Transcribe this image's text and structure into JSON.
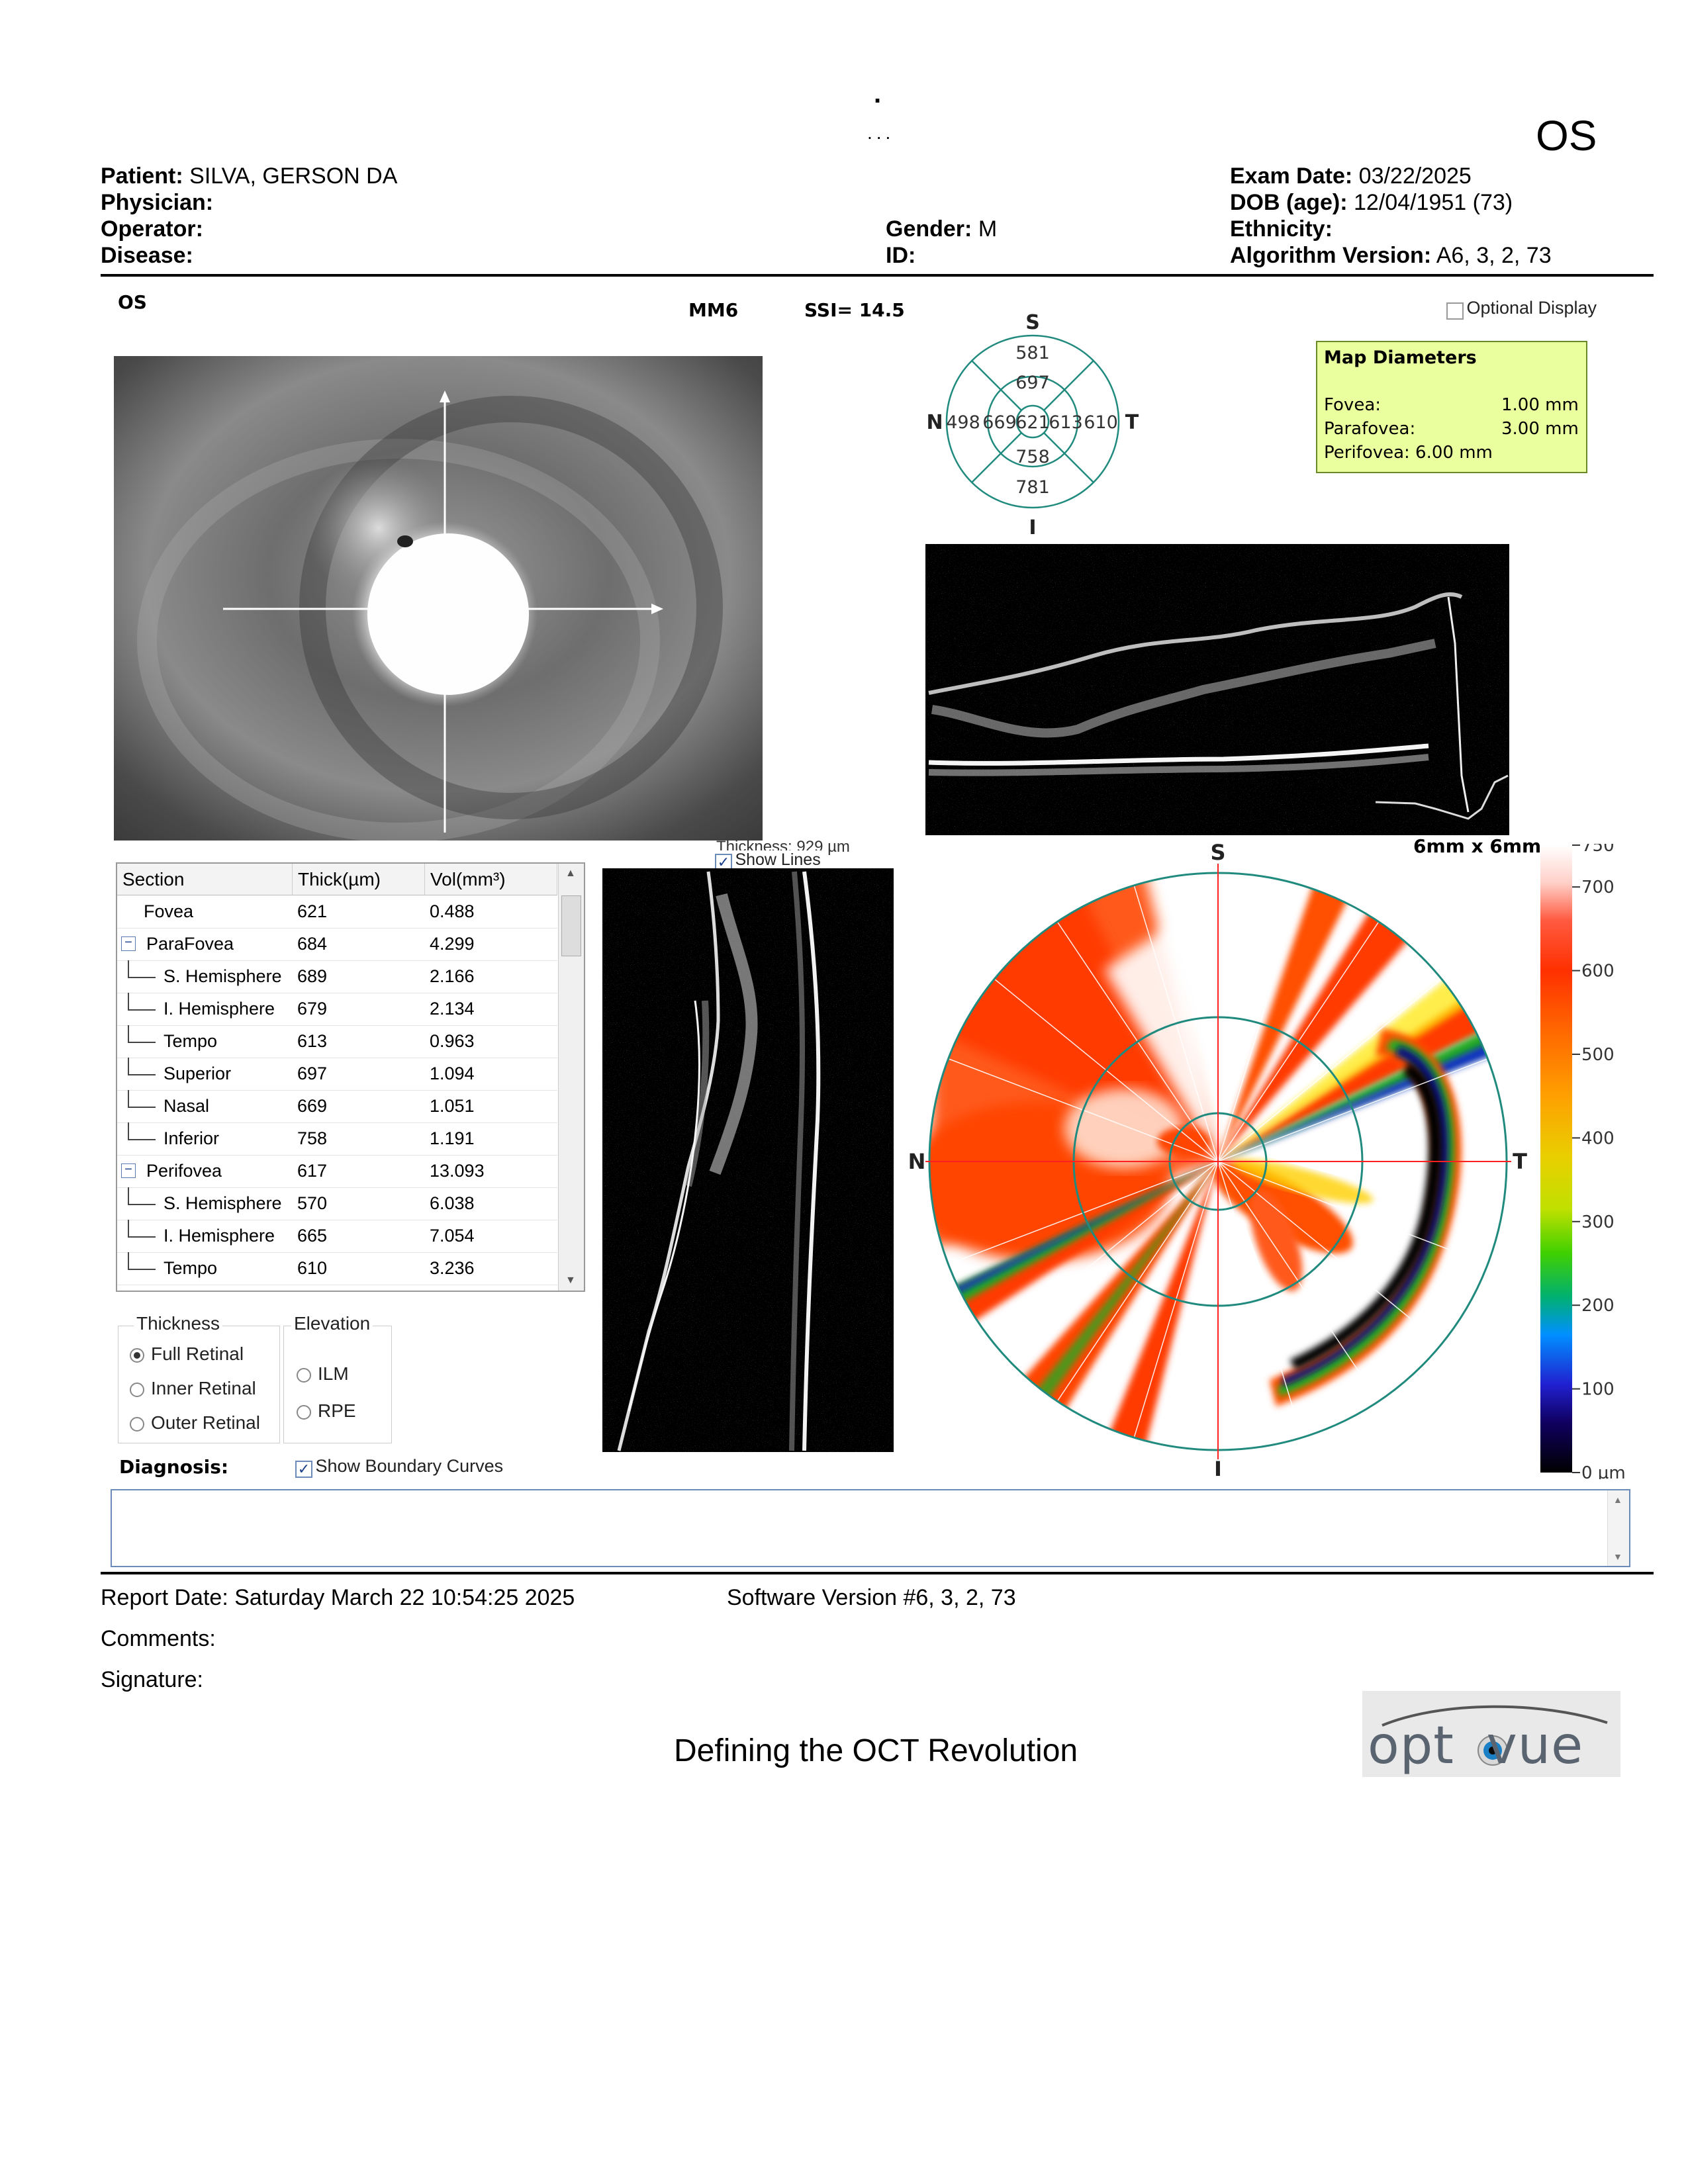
{
  "header": {
    "dot_mark": ".",
    "dots_mark": "...",
    "eye": "OS",
    "patient_label": "Patient:",
    "patient_value": "SILVA, GERSON DA",
    "physician_label": "Physician:",
    "operator_label": "Operator:",
    "disease_label": "Disease:",
    "gender_label": "Gender:",
    "gender_value": "M",
    "id_label": "ID:",
    "exam_date_label": "Exam Date:",
    "exam_date_value": "03/22/2025",
    "dob_label": "DOB (age):",
    "dob_value": "12/04/1951 (73)",
    "ethnicity_label": "Ethnicity:",
    "algorithm_label": "Algorithm Version:",
    "algorithm_value": "A6, 3, 2, 73"
  },
  "scan": {
    "eye_label": "OS",
    "mode": "MM6",
    "ssi": "SSI= 14.5",
    "optional_display": "Optional Display"
  },
  "sector_map": {
    "S": "S",
    "I": "I",
    "N": "N",
    "T": "T",
    "outer_superior": "581",
    "inner_superior": "697",
    "outer_nasal": "498",
    "inner_nasal": "669",
    "center": "621",
    "inner_temporal": "613",
    "outer_temporal": "610",
    "inner_inferior": "758",
    "outer_inferior": "781"
  },
  "map_diameters": {
    "title": "Map Diameters",
    "fovea_label": "Fovea:",
    "fovea_value": "1.00 mm",
    "parafovea_label": "Parafovea:",
    "parafovea_value": "3.00 mm",
    "perifovea": "Perifovea: 6.00 mm"
  },
  "table": {
    "col_section": "Section",
    "col_thick": "Thick(µm)",
    "col_vol": "Vol(mm³)",
    "rows": [
      {
        "name": "Fovea",
        "thick": "621",
        "vol": "0.488",
        "level": 0
      },
      {
        "name": "ParaFovea",
        "thick": "684",
        "vol": "4.299",
        "level": 1
      },
      {
        "name": "S. Hemisphere",
        "thick": "689",
        "vol": "2.166",
        "level": 2
      },
      {
        "name": "I. Hemisphere",
        "thick": "679",
        "vol": "2.134",
        "level": 2
      },
      {
        "name": "Tempo",
        "thick": "613",
        "vol": "0.963",
        "level": 2
      },
      {
        "name": "Superior",
        "thick": "697",
        "vol": "1.094",
        "level": 2
      },
      {
        "name": "Nasal",
        "thick": "669",
        "vol": "1.051",
        "level": 2
      },
      {
        "name": "Inferior",
        "thick": "758",
        "vol": "1.191",
        "level": 2
      },
      {
        "name": "Perifovea",
        "thick": "617",
        "vol": "13.093",
        "level": 1
      },
      {
        "name": "S. Hemisphere",
        "thick": "570",
        "vol": "6.038",
        "level": 2
      },
      {
        "name": "I. Hemisphere",
        "thick": "665",
        "vol": "7.054",
        "level": 2
      },
      {
        "name": "Tempo",
        "thick": "610",
        "vol": "3.236",
        "level": 2
      }
    ]
  },
  "controls": {
    "thickness_title": "Thickness",
    "full_retinal": "Full Retinal",
    "inner_retinal": "Inner Retinal",
    "outer_retinal": "Outer Retinal",
    "elevation_title": "Elevation",
    "ilm": "ILM",
    "rpe": "RPE",
    "show_lines": "Show Lines",
    "thickness_readout": "Thickness: 929 µm",
    "show_boundary_curves": "Show Boundary Curves",
    "diagnosis_label": "Diagnosis:"
  },
  "thickness_map": {
    "size": "6mm x 6mm",
    "S": "S",
    "I": "I",
    "N": "N",
    "T": "T"
  },
  "color_scale": {
    "ticks": [
      "750",
      "700",
      "600",
      "500",
      "400",
      "300",
      "200",
      "100",
      "0 µm"
    ]
  },
  "footer": {
    "report_date": "Report Date: Saturday March 22 10:54:25 2025",
    "software_version": "Software Version #6, 3, 2, 73",
    "comments": "Comments:",
    "signature": "Signature:",
    "tagline": "Defining the OCT Revolution",
    "logo": "optovue"
  },
  "colors": {
    "map_green": "#eaff9e",
    "sector_lines": "#1f8a7d",
    "heat_red": "#ff3a00",
    "heat_white": "#ffffff"
  }
}
